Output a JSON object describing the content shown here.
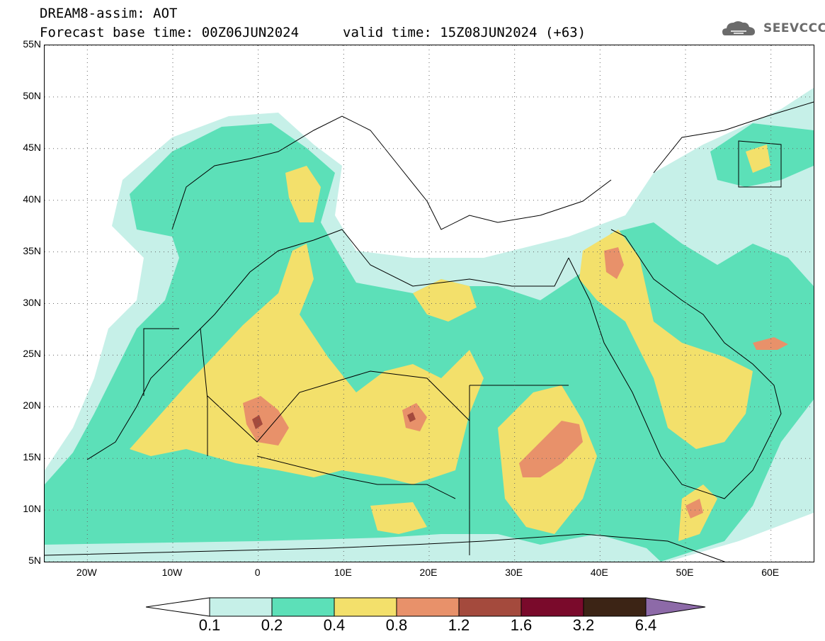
{
  "header": {
    "title_line1": "DREAM8-assim: AOT",
    "title_line2": "Forecast base time: 00Z06JUN2024",
    "valid_time": "valid time: 15Z08JUN2024 (+63)",
    "logo_text": "SEEVCCC"
  },
  "map": {
    "lat_labels": [
      "55N",
      "50N",
      "45N",
      "40N",
      "35N",
      "30N",
      "25N",
      "20N",
      "15N",
      "10N",
      "5N"
    ],
    "lat_values": [
      55,
      50,
      45,
      40,
      35,
      30,
      25,
      20,
      15,
      10,
      5
    ],
    "lon_labels": [
      "20W",
      "10W",
      "0",
      "10E",
      "20E",
      "30E",
      "40E",
      "50E",
      "60E"
    ],
    "lon_values": [
      -20,
      -10,
      0,
      10,
      20,
      30,
      40,
      50,
      60
    ],
    "lon_range": [
      -25,
      65
    ],
    "lat_range": [
      5,
      55
    ],
    "grid_style": "dotted"
  },
  "colorbar": {
    "labels": [
      "0.1",
      "0.2",
      "0.4",
      "0.8",
      "1.2",
      "1.6",
      "3.2",
      "6.4"
    ],
    "colors": [
      "#ffffff",
      "#c6f0e8",
      "#5ce0b8",
      "#f3e06b",
      "#e8916a",
      "#a44a3d",
      "#7a0a2b",
      "#3c2415",
      "#8d6aa8"
    ]
  }
}
